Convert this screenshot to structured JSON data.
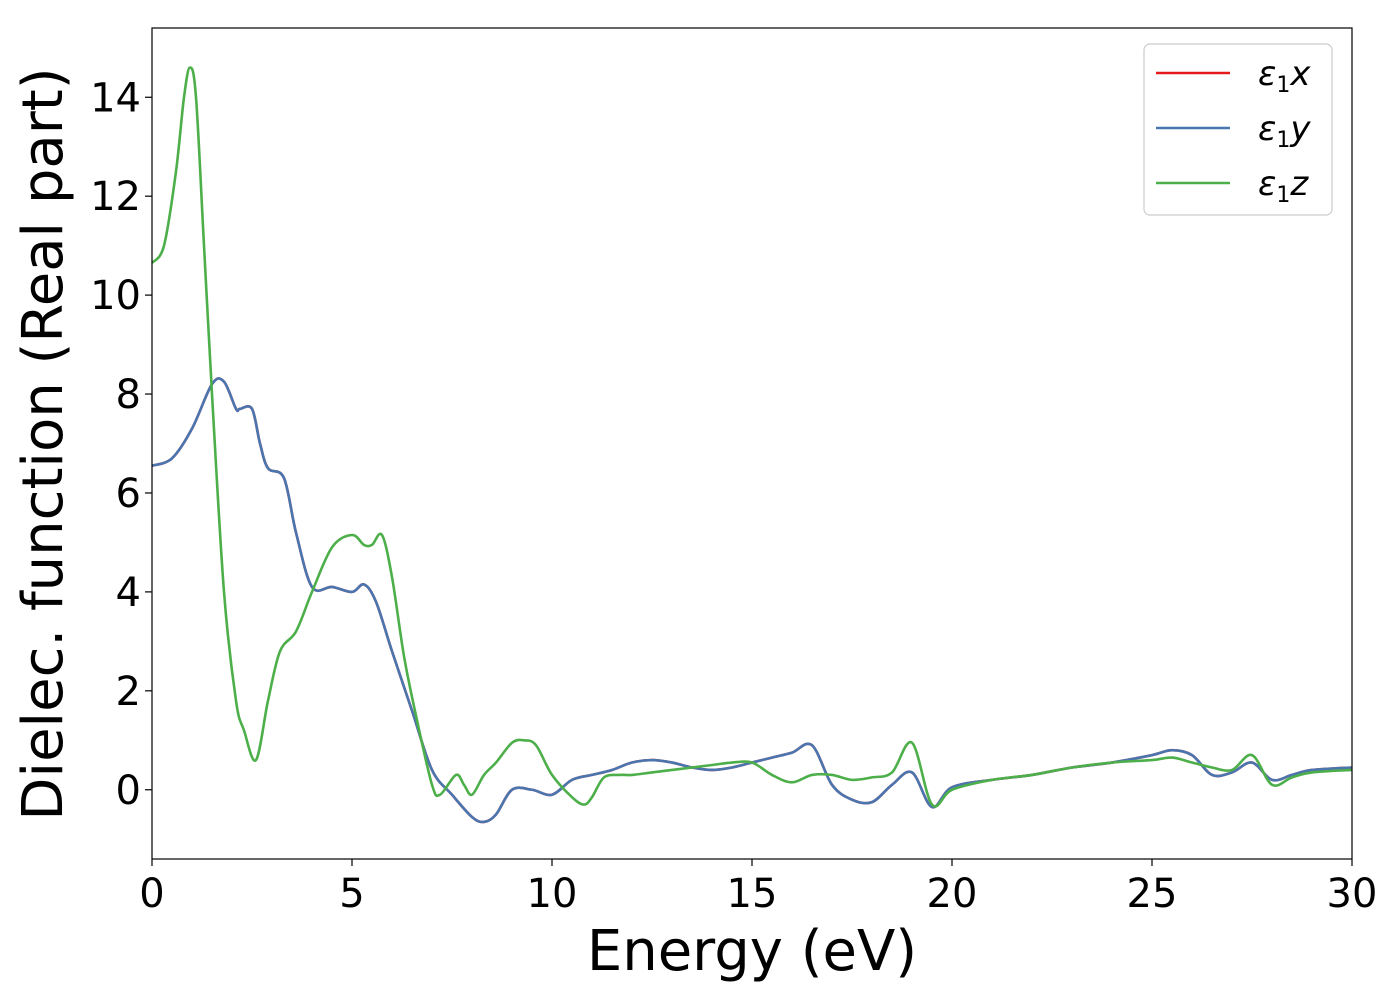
{
  "chart_data": {
    "type": "line",
    "xlabel": "Energy (eV)",
    "ylabel": "Dielec. function (Real part)",
    "xlim": [
      0,
      30
    ],
    "ylim": [
      -1.4,
      15.4
    ],
    "xticks": [
      0,
      5,
      10,
      15,
      20,
      25,
      30
    ],
    "yticks": [
      0,
      2,
      4,
      6,
      8,
      10,
      12,
      14
    ],
    "legend_position": "top-right",
    "grid": false,
    "series": [
      {
        "name": "ε1x",
        "label_base": "ε",
        "label_sub": "1",
        "label_var": "x",
        "color": "#e41a1c",
        "x": [
          0,
          0.5,
          1,
          1.5,
          1.8,
          2.1,
          2.2,
          2.5,
          2.7,
          2.9,
          3.3,
          3.6,
          4,
          4.5,
          5,
          5.3,
          5.6,
          6,
          6.5,
          7,
          7.5,
          8,
          8.3,
          8.6,
          9,
          9.5,
          10,
          10.5,
          11,
          11.5,
          12,
          12.5,
          13,
          13.5,
          14,
          14.5,
          15,
          15.5,
          16,
          16.5,
          17,
          17.5,
          18,
          18.5,
          19,
          19.5,
          20,
          21,
          22,
          23,
          24,
          25,
          25.5,
          26,
          26.5,
          27,
          27.5,
          28,
          28.5,
          29,
          30
        ],
        "y": [
          6.55,
          6.7,
          7.3,
          8.2,
          8.25,
          7.7,
          7.7,
          7.7,
          7.0,
          6.5,
          6.3,
          5.2,
          4.1,
          4.1,
          4.0,
          4.15,
          3.8,
          2.8,
          1.6,
          0.4,
          -0.1,
          -0.55,
          -0.65,
          -0.5,
          0.0,
          0.0,
          -0.1,
          0.2,
          0.3,
          0.4,
          0.55,
          0.6,
          0.55,
          0.45,
          0.4,
          0.45,
          0.55,
          0.65,
          0.75,
          0.9,
          0.1,
          -0.2,
          -0.25,
          0.1,
          0.35,
          -0.35,
          0.05,
          0.2,
          0.3,
          0.45,
          0.55,
          0.7,
          0.8,
          0.7,
          0.3,
          0.35,
          0.55,
          0.2,
          0.3,
          0.4,
          0.45
        ]
      },
      {
        "name": "ε1y",
        "label_base": "ε",
        "label_sub": "1",
        "label_var": "y",
        "color": "#4a76b0",
        "x": [
          0,
          0.5,
          1,
          1.5,
          1.8,
          2.1,
          2.2,
          2.5,
          2.7,
          2.9,
          3.3,
          3.6,
          4,
          4.5,
          5,
          5.3,
          5.6,
          6,
          6.5,
          7,
          7.5,
          8,
          8.3,
          8.6,
          9,
          9.5,
          10,
          10.5,
          11,
          11.5,
          12,
          12.5,
          13,
          13.5,
          14,
          14.5,
          15,
          15.5,
          16,
          16.5,
          17,
          17.5,
          18,
          18.5,
          19,
          19.5,
          20,
          21,
          22,
          23,
          24,
          25,
          25.5,
          26,
          26.5,
          27,
          27.5,
          28,
          28.5,
          29,
          30
        ],
        "y": [
          6.55,
          6.7,
          7.3,
          8.2,
          8.25,
          7.7,
          7.7,
          7.7,
          7.0,
          6.5,
          6.3,
          5.2,
          4.1,
          4.1,
          4.0,
          4.15,
          3.8,
          2.8,
          1.6,
          0.4,
          -0.1,
          -0.55,
          -0.65,
          -0.5,
          0.0,
          0.0,
          -0.1,
          0.2,
          0.3,
          0.4,
          0.55,
          0.6,
          0.55,
          0.45,
          0.4,
          0.45,
          0.55,
          0.65,
          0.75,
          0.9,
          0.1,
          -0.2,
          -0.25,
          0.1,
          0.35,
          -0.35,
          0.05,
          0.2,
          0.3,
          0.45,
          0.55,
          0.7,
          0.8,
          0.7,
          0.3,
          0.35,
          0.55,
          0.2,
          0.3,
          0.4,
          0.45
        ]
      },
      {
        "name": "ε1z",
        "label_base": "ε",
        "label_sub": "1",
        "label_var": "z",
        "color": "#4daf4a",
        "x": [
          0,
          0.3,
          0.6,
          0.8,
          0.95,
          1.1,
          1.3,
          1.5,
          1.8,
          2.1,
          2.3,
          2.6,
          2.9,
          3.2,
          3.6,
          4,
          4.5,
          5,
          5.3,
          5.5,
          5.75,
          6,
          6.3,
          6.6,
          7,
          7.2,
          7.6,
          7.8,
          8,
          8.3,
          8.6,
          9,
          9.3,
          9.6,
          10,
          10.5,
          10.8,
          11,
          11.3,
          11.7,
          12,
          12.5,
          13,
          13.5,
          14,
          14.5,
          15,
          15.5,
          16,
          16.5,
          17,
          17.5,
          18,
          18.5,
          19,
          19.5,
          20,
          21,
          22,
          23,
          24,
          25,
          25.5,
          26,
          26.5,
          27,
          27.5,
          28,
          28.5,
          29,
          30
        ],
        "y": [
          10.65,
          11.0,
          12.5,
          14.0,
          14.6,
          14.0,
          11.0,
          8.0,
          4.0,
          1.8,
          1.2,
          0.6,
          1.8,
          2.8,
          3.2,
          4.0,
          4.9,
          5.15,
          4.95,
          4.95,
          5.15,
          4.3,
          2.7,
          1.5,
          0.1,
          -0.1,
          0.3,
          0.1,
          -0.1,
          0.3,
          0.55,
          0.95,
          1.0,
          0.9,
          0.3,
          -0.15,
          -0.3,
          -0.15,
          0.25,
          0.3,
          0.3,
          0.35,
          0.4,
          0.45,
          0.5,
          0.55,
          0.55,
          0.3,
          0.15,
          0.3,
          0.3,
          0.2,
          0.25,
          0.35,
          0.95,
          -0.3,
          0.0,
          0.2,
          0.3,
          0.45,
          0.55,
          0.6,
          0.65,
          0.55,
          0.45,
          0.4,
          0.7,
          0.1,
          0.25,
          0.35,
          0.4
        ]
      }
    ]
  }
}
